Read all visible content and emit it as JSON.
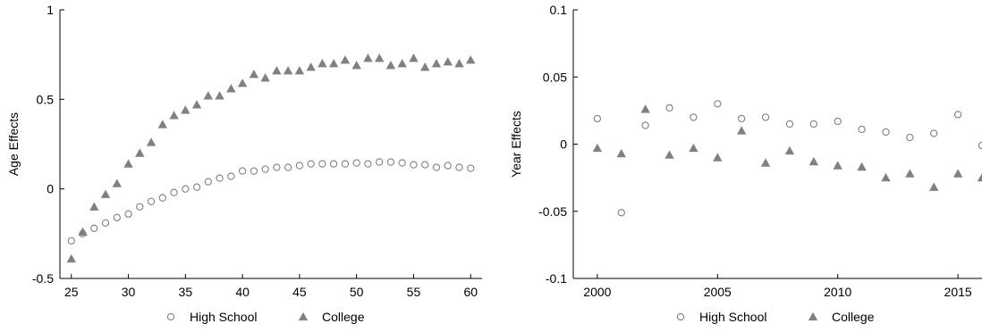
{
  "chart_data": [
    {
      "type": "scatter",
      "title": "",
      "xlabel": "",
      "ylabel": "Age Effects",
      "xlim": [
        24,
        61
      ],
      "ylim": [
        -0.5,
        1
      ],
      "xticks": [
        25,
        30,
        35,
        40,
        45,
        50,
        55,
        60
      ],
      "yticks": [
        -0.5,
        0,
        0.5,
        1
      ],
      "ytick_labels": [
        "-0.5",
        "0",
        "0.5",
        "1"
      ],
      "grid": false,
      "legend_position": "bottom",
      "series": [
        {
          "name": "High School",
          "marker": "open-circle",
          "color": "#808080",
          "x": [
            25,
            26,
            27,
            28,
            29,
            30,
            31,
            32,
            33,
            34,
            35,
            36,
            37,
            38,
            39,
            40,
            41,
            42,
            43,
            44,
            45,
            46,
            47,
            48,
            49,
            50,
            51,
            52,
            53,
            54,
            55,
            56,
            57,
            58,
            59,
            60
          ],
          "y": [
            -0.29,
            -0.25,
            -0.22,
            -0.19,
            -0.16,
            -0.14,
            -0.1,
            -0.07,
            -0.05,
            -0.02,
            0.0,
            0.01,
            0.04,
            0.06,
            0.07,
            0.1,
            0.1,
            0.11,
            0.12,
            0.12,
            0.13,
            0.14,
            0.14,
            0.14,
            0.14,
            0.145,
            0.14,
            0.15,
            0.15,
            0.145,
            0.135,
            0.135,
            0.12,
            0.13,
            0.12,
            0.115
          ]
        },
        {
          "name": "College",
          "marker": "filled-triangle",
          "color": "#808080",
          "x": [
            25,
            26,
            27,
            28,
            29,
            30,
            31,
            32,
            33,
            34,
            35,
            36,
            37,
            38,
            39,
            40,
            41,
            42,
            43,
            44,
            45,
            46,
            47,
            48,
            49,
            50,
            51,
            52,
            53,
            54,
            55,
            56,
            57,
            58,
            59,
            60
          ],
          "y": [
            -0.39,
            -0.24,
            -0.1,
            -0.03,
            0.03,
            0.14,
            0.2,
            0.26,
            0.36,
            0.41,
            0.44,
            0.47,
            0.52,
            0.52,
            0.56,
            0.59,
            0.64,
            0.62,
            0.66,
            0.66,
            0.66,
            0.68,
            0.7,
            0.7,
            0.72,
            0.69,
            0.73,
            0.73,
            0.69,
            0.7,
            0.73,
            0.68,
            0.7,
            0.71,
            0.7,
            0.72
          ]
        }
      ]
    },
    {
      "type": "scatter",
      "title": "",
      "xlabel": "",
      "ylabel": "Year Effects",
      "xlim": [
        1999,
        2016
      ],
      "ylim": [
        -0.1,
        0.1
      ],
      "xticks": [
        2000,
        2005,
        2010,
        2015
      ],
      "yticks": [
        -0.1,
        -0.05,
        0,
        0.05,
        0.1
      ],
      "ytick_labels": [
        "-0.1",
        "-0.05",
        "0",
        "0.05",
        "0.1"
      ],
      "grid": false,
      "legend_position": "bottom",
      "series": [
        {
          "name": "High School",
          "marker": "open-circle",
          "color": "#808080",
          "x": [
            2000,
            2001,
            2002,
            2003,
            2004,
            2005,
            2006,
            2007,
            2008,
            2009,
            2010,
            2011,
            2012,
            2013,
            2014,
            2015,
            2016
          ],
          "y": [
            0.019,
            -0.051,
            0.014,
            0.027,
            0.02,
            0.03,
            0.019,
            0.02,
            0.015,
            0.015,
            0.017,
            0.011,
            0.009,
            0.005,
            0.008,
            0.022,
            -0.001
          ]
        },
        {
          "name": "College",
          "marker": "filled-triangle",
          "color": "#808080",
          "x": [
            2000,
            2001,
            2002,
            2003,
            2004,
            2005,
            2006,
            2007,
            2008,
            2009,
            2010,
            2011,
            2012,
            2013,
            2014,
            2015,
            2016
          ],
          "y": [
            -0.003,
            -0.007,
            0.026,
            -0.008,
            -0.003,
            -0.01,
            0.01,
            -0.014,
            -0.005,
            -0.013,
            -0.016,
            -0.017,
            -0.025,
            -0.022,
            -0.032,
            -0.022,
            -0.025
          ]
        }
      ]
    }
  ]
}
